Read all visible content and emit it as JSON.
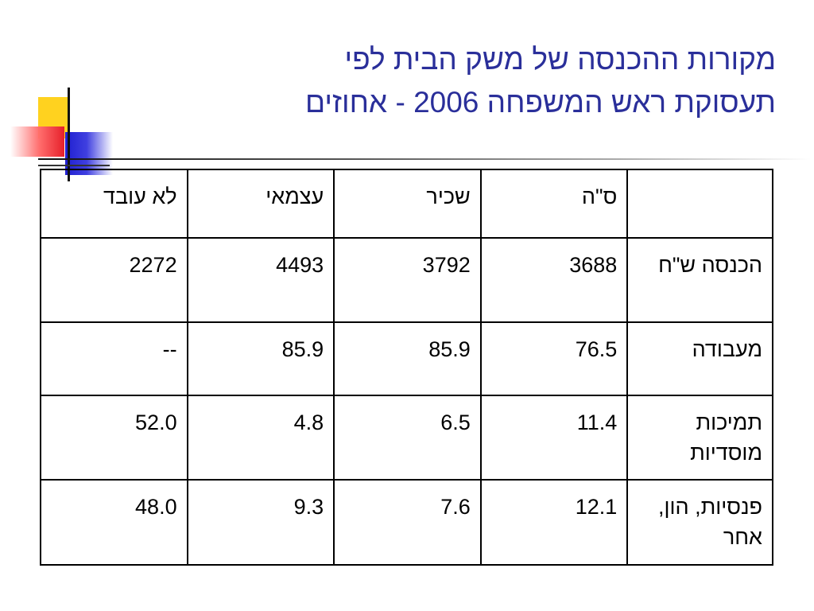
{
  "title": {
    "line1": "מקורות ההכנסה של משק הבית לפי",
    "line2": "תעסוקת ראש המשפחה 2006 - אחוזים"
  },
  "table": {
    "headers": [
      "",
      "ס\"ה",
      "שכיר",
      "עצמאי",
      "לא עובד"
    ],
    "rows": [
      {
        "label": "הכנסה ש\"ח",
        "values": [
          "3688",
          "3792",
          "4493",
          "2272"
        ]
      },
      {
        "label": "מעבודה",
        "values": [
          "76.5",
          "85.9",
          "85.9",
          "--"
        ]
      },
      {
        "label": "תמיכות מוסדיות",
        "values": [
          "11.4",
          "6.5",
          "4.8",
          "52.0"
        ]
      },
      {
        "label": "פנסיות, הון, אחר",
        "values": [
          "12.1",
          "7.6",
          "9.3",
          "48.0"
        ]
      }
    ]
  }
}
